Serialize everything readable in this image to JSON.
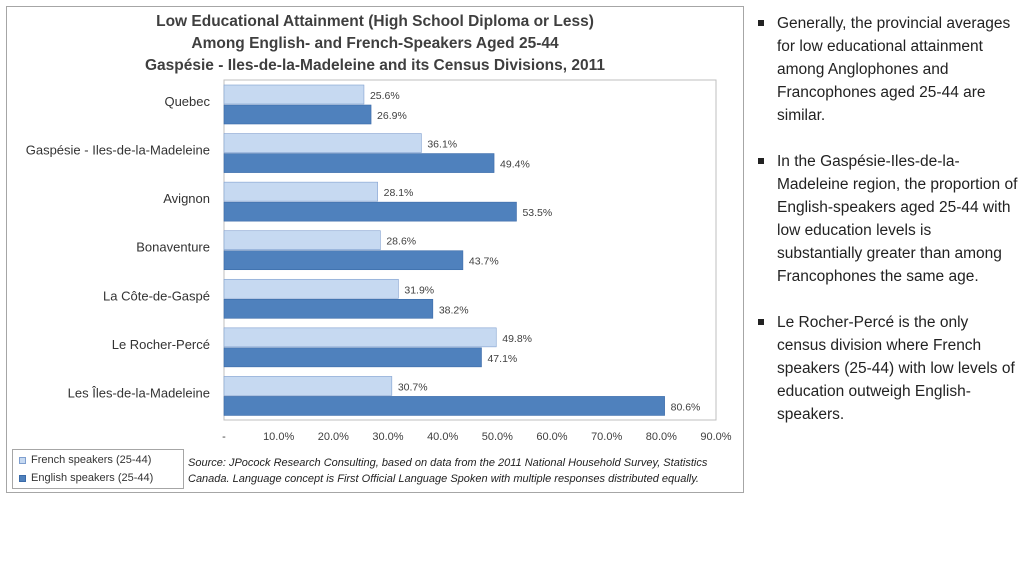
{
  "title": {
    "line1": "Low Educational Attainment (High School Diploma or Less)",
    "line2": "Among English- and French-Speakers Aged 25-44",
    "line3": "Gaspésie - Iles-de-la-Madeleine and its Census Divisions, 2011"
  },
  "source_text": "Source: JPocock Research Consulting, based on data from the 2011 National Household Survey, Statistics Canada. Language concept is First Official Language Spoken with multiple responses distributed equally.",
  "colors": {
    "french": "#c6d9f1",
    "english": "#4f81bd",
    "french_border": "#7f9fcf",
    "english_border": "#3a6aa8"
  },
  "chart_data": {
    "type": "bar",
    "orientation": "horizontal",
    "categories": [
      "Quebec",
      "Gaspésie - Iles-de-la-Madeleine",
      "Avignon",
      "Bonaventure",
      "La Côte-de-Gaspé",
      "Le Rocher-Percé",
      "Les Îles-de-la-Madeleine"
    ],
    "series": [
      {
        "name": "French speakers (25-44)",
        "values": [
          25.6,
          36.1,
          28.1,
          28.6,
          31.9,
          49.8,
          30.7
        ]
      },
      {
        "name": "English speakers (25-44)",
        "values": [
          26.9,
          49.4,
          53.5,
          43.7,
          38.2,
          47.1,
          80.6
        ]
      }
    ],
    "xlim": [
      0,
      90
    ],
    "xticks": [
      "-",
      "10.0%",
      "20.0%",
      "30.0%",
      "40.0%",
      "50.0%",
      "60.0%",
      "70.0%",
      "80.0%",
      "90.0%"
    ],
    "legend_position": "bottom-left",
    "grid": false
  },
  "notes": [
    "Generally, the provincial averages for low educational attainment among Anglophones and Francophones aged 25-44 are similar.",
    "In the Gaspésie-Iles-de-la-Madeleine region, the proportion of English-speakers aged 25-44 with low education levels is substantially greater than among Francophones the same age.",
    "Le Rocher-Percé is the only census division where French speakers (25-44) with low levels of education outweigh English-speakers."
  ]
}
